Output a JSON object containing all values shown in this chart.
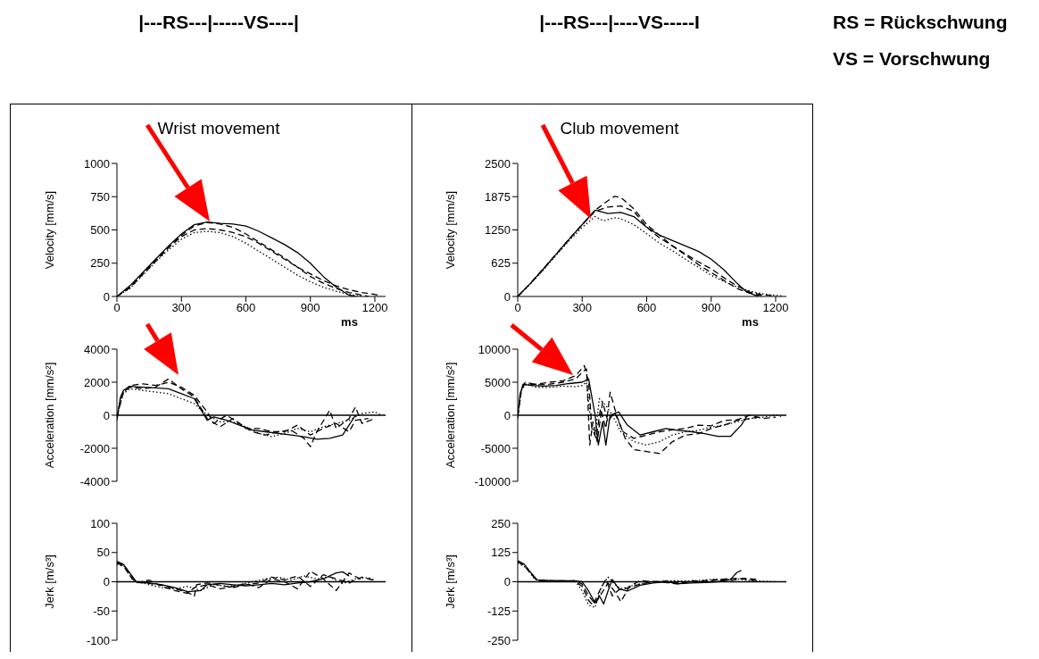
{
  "chart_data": [
    {
      "type": "line",
      "title": "Wrist movement",
      "xlabel": "ms",
      "ylabel": "Velocity [mm/s]",
      "xlim": [
        0,
        1250
      ],
      "xticks": [
        0,
        300,
        600,
        900,
        1200
      ],
      "ylim": [
        0,
        1000
      ],
      "yticks": [
        0,
        250,
        500,
        750,
        1000
      ],
      "annotations": [
        "|---RS---|-----VS----|"
      ],
      "series": [
        {
          "color": "#000000",
          "line_style": "solid",
          "x": [
            0,
            60,
            120,
            180,
            240,
            300,
            360,
            420,
            480,
            540,
            600,
            660,
            720,
            780,
            840,
            900,
            960,
            1020,
            1080,
            1110
          ],
          "values": [
            0,
            80,
            180,
            280,
            380,
            470,
            540,
            560,
            550,
            545,
            530,
            490,
            440,
            390,
            330,
            250,
            150,
            70,
            10,
            0
          ]
        },
        {
          "color": "#000000",
          "line_style": "dashed",
          "x": [
            0,
            60,
            120,
            180,
            240,
            300,
            360,
            420,
            480,
            540,
            600,
            660,
            720,
            780,
            840,
            900,
            960,
            1020,
            1080,
            1140,
            1170
          ],
          "values": [
            0,
            70,
            170,
            270,
            370,
            460,
            530,
            555,
            545,
            520,
            470,
            410,
            350,
            290,
            220,
            150,
            100,
            60,
            30,
            10,
            0
          ]
        },
        {
          "color": "#000000",
          "line_style": "dotted",
          "x": [
            0,
            60,
            120,
            180,
            240,
            300,
            360,
            420,
            480,
            540,
            600,
            660,
            720,
            780,
            840,
            900,
            960,
            1020,
            1080,
            1140
          ],
          "values": [
            0,
            60,
            160,
            260,
            350,
            430,
            480,
            490,
            480,
            450,
            400,
            340,
            280,
            220,
            160,
            110,
            70,
            40,
            15,
            0
          ]
        },
        {
          "color": "#000000",
          "line_style": "dashed",
          "x": [
            0,
            60,
            120,
            180,
            240,
            300,
            360,
            420,
            480,
            540,
            600,
            660,
            720,
            780,
            840,
            900,
            960,
            1020,
            1080,
            1140,
            1200,
            1230
          ],
          "values": [
            0,
            65,
            165,
            265,
            365,
            450,
            500,
            510,
            500,
            480,
            450,
            400,
            340,
            280,
            220,
            170,
            120,
            80,
            50,
            30,
            15,
            5
          ]
        }
      ]
    },
    {
      "type": "line",
      "title": "Club movement",
      "xlabel": "ms",
      "ylabel": "Velocity [mm/s]",
      "xlim": [
        0,
        1250
      ],
      "xticks": [
        0,
        300,
        600,
        900,
        1200
      ],
      "ylim": [
        0,
        2500
      ],
      "yticks": [
        0,
        625,
        1250,
        1875,
        2500
      ],
      "annotations": [
        "|---RS---|----VS-----I",
        "RS = Rückschwung",
        "VS = Vorschwung"
      ],
      "series": [
        {
          "color": "#000000",
          "line_style": "solid",
          "x": [
            0,
            60,
            120,
            180,
            240,
            300,
            360,
            420,
            480,
            540,
            600,
            660,
            720,
            780,
            840,
            900,
            960,
            1020,
            1060,
            1100,
            1120
          ],
          "values": [
            0,
            250,
            520,
            800,
            1080,
            1350,
            1620,
            1560,
            1580,
            1500,
            1300,
            1150,
            1050,
            950,
            850,
            700,
            500,
            250,
            100,
            30,
            0
          ]
        },
        {
          "color": "#000000",
          "line_style": "dashed",
          "x": [
            0,
            60,
            120,
            180,
            240,
            300,
            360,
            420,
            450,
            480,
            540,
            600,
            660,
            720,
            780,
            840,
            900,
            960,
            1020,
            1080,
            1140
          ],
          "values": [
            0,
            250,
            520,
            800,
            1080,
            1350,
            1620,
            1800,
            1880,
            1860,
            1650,
            1350,
            1150,
            950,
            780,
            600,
            450,
            300,
            150,
            60,
            10
          ]
        },
        {
          "color": "#000000",
          "line_style": "dotted",
          "x": [
            0,
            60,
            120,
            180,
            240,
            300,
            360,
            400,
            450,
            480,
            540,
            600,
            660,
            720,
            780,
            840,
            900,
            960,
            1020,
            1080,
            1140,
            1200,
            1230
          ],
          "values": [
            0,
            240,
            500,
            780,
            1050,
            1300,
            1500,
            1420,
            1480,
            1460,
            1350,
            1180,
            1000,
            860,
            700,
            550,
            400,
            280,
            180,
            100,
            50,
            20,
            10
          ]
        },
        {
          "color": "#000000",
          "line_style": "dashed",
          "x": [
            0,
            60,
            120,
            180,
            240,
            300,
            360,
            420,
            480,
            540,
            600,
            660,
            720,
            780,
            840,
            900,
            960,
            1020,
            1080,
            1140,
            1200
          ],
          "values": [
            0,
            250,
            520,
            800,
            1080,
            1350,
            1600,
            1680,
            1700,
            1600,
            1300,
            1100,
            950,
            800,
            650,
            520,
            350,
            200,
            80,
            30,
            10
          ]
        }
      ]
    },
    {
      "type": "line",
      "ylabel": "Acceleration [mm/s²]",
      "xlim": [
        0,
        1250
      ],
      "ylim": [
        -4000,
        4000
      ],
      "yticks": [
        -4000,
        -2000,
        0,
        2000,
        4000
      ],
      "tick_labels": "y",
      "ref_lines": [
        {
          "axis": "y",
          "value": 0
        }
      ],
      "series": [
        {
          "color": "#000000",
          "line_style": "solid",
          "x": [
            0,
            15,
            30,
            60,
            120,
            180,
            240,
            300,
            360,
            420,
            450,
            510,
            570,
            630,
            690,
            750,
            810,
            870,
            930,
            990,
            1050,
            1110
          ],
          "values": [
            -300,
            1000,
            1500,
            1750,
            1700,
            1650,
            1600,
            1300,
            1000,
            -300,
            -100,
            -300,
            -600,
            -900,
            -1000,
            -1100,
            -1200,
            -1300,
            -1450,
            -1400,
            -1200,
            0
          ]
        },
        {
          "color": "#000000",
          "line_style": "dashed",
          "x": [
            0,
            20,
            60,
            120,
            180,
            240,
            300,
            360,
            420,
            450,
            510,
            570,
            630,
            690,
            750,
            810,
            870,
            900,
            930,
            990,
            1020,
            1080,
            1110,
            1140,
            1200
          ],
          "values": [
            -200,
            1200,
            1800,
            1900,
            1800,
            2000,
            1700,
            1200,
            200,
            -500,
            0,
            -500,
            -1000,
            -1200,
            -1000,
            -900,
            -1400,
            -1900,
            -1000,
            300,
            -800,
            -200,
            500,
            -500,
            -200
          ]
        },
        {
          "color": "#000000",
          "line_style": "dotted",
          "x": [
            0,
            30,
            60,
            120,
            180,
            240,
            300,
            360,
            420,
            480,
            540,
            600,
            660,
            720,
            780,
            840,
            900,
            960,
            1020,
            1080,
            1140,
            1200,
            1230
          ],
          "values": [
            0,
            1300,
            1600,
            1500,
            1400,
            1300,
            1000,
            700,
            0,
            -400,
            -400,
            -700,
            -1100,
            -1300,
            -1100,
            -800,
            -1000,
            -700,
            -500,
            -300,
            100,
            200,
            0
          ]
        },
        {
          "color": "#000000",
          "line_style": "dashed",
          "x": [
            0,
            30,
            60,
            120,
            180,
            240,
            300,
            360,
            420,
            480,
            540,
            600,
            660,
            720,
            780,
            840,
            900,
            960,
            1020,
            1080,
            1110,
            1170
          ],
          "values": [
            -100,
            1400,
            1700,
            1600,
            1700,
            2200,
            1600,
            1100,
            -200,
            -700,
            -200,
            -800,
            -800,
            -1000,
            -1000,
            -600,
            -1200,
            -800,
            -500,
            -1000,
            -300,
            -200
          ]
        }
      ]
    },
    {
      "type": "line",
      "ylabel": "Acceleration [mm/s²]",
      "xlim": [
        0,
        1250
      ],
      "ylim": [
        -10000,
        10000
      ],
      "yticks": [
        -10000,
        -5000,
        0,
        5000,
        10000
      ],
      "tick_labels": "y",
      "ref_lines": [
        {
          "axis": "y",
          "value": 0
        }
      ],
      "series": [
        {
          "color": "#000000",
          "line_style": "solid",
          "x": [
            0,
            10,
            25,
            60,
            120,
            180,
            240,
            300,
            330,
            360,
            375,
            395,
            410,
            430,
            470,
            510,
            570,
            630,
            690,
            750,
            810,
            870,
            930,
            990,
            1040,
            1070
          ],
          "values": [
            -500,
            3000,
            4700,
            4500,
            4400,
            4500,
            4800,
            5000,
            5500,
            0,
            -4500,
            -1000,
            -4500,
            0,
            500,
            -1500,
            -3000,
            -2500,
            -2000,
            -2300,
            -2500,
            -2800,
            -3200,
            -3200,
            -1500,
            0
          ]
        },
        {
          "color": "#000000",
          "line_style": "dashed",
          "x": [
            0,
            15,
            30,
            90,
            150,
            210,
            270,
            310,
            330,
            345,
            365,
            385,
            410,
            430,
            460,
            500,
            540,
            600,
            660,
            720,
            780,
            840,
            900,
            960,
            1020,
            1080,
            1140
          ],
          "values": [
            -300,
            3500,
            4600,
            4700,
            5000,
            5200,
            6000,
            7500,
            5000,
            -2000,
            -3500,
            1000,
            -2000,
            3500,
            0,
            -3500,
            -5200,
            -5500,
            -5800,
            -4000,
            -3000,
            -2800,
            -2000,
            -1500,
            -800,
            -500,
            -200
          ]
        },
        {
          "color": "#000000",
          "line_style": "dotted",
          "x": [
            0,
            20,
            40,
            90,
            150,
            210,
            270,
            300,
            320,
            340,
            360,
            380,
            410,
            440,
            480,
            540,
            600,
            660,
            720,
            780,
            840,
            900,
            960,
            1020,
            1080,
            1140,
            1200,
            1230
          ],
          "values": [
            0,
            4000,
            4800,
            4200,
            4200,
            4400,
            4300,
            4500,
            5000,
            -1000,
            -3000,
            2500,
            1500,
            0,
            -2500,
            -4000,
            -4500,
            -4000,
            -3000,
            -2500,
            -2300,
            -1800,
            -1500,
            -1000,
            -500,
            -300,
            0,
            -200
          ]
        },
        {
          "color": "#000000",
          "line_style": "dashed",
          "x": [
            0,
            15,
            35,
            90,
            150,
            210,
            270,
            300,
            320,
            335,
            350,
            370,
            395,
            420,
            450,
            490,
            540,
            600,
            660,
            720,
            780,
            840,
            900,
            960,
            1020,
            1080,
            1140,
            1200
          ],
          "values": [
            -200,
            3800,
            5000,
            4600,
            4700,
            5000,
            5500,
            6500,
            7000,
            -4500,
            -1000,
            -4000,
            2000,
            -1000,
            500,
            -2500,
            -3500,
            -3000,
            -2500,
            -2200,
            -2000,
            -1500,
            -1600,
            -800,
            -700,
            0,
            -500,
            -300
          ]
        }
      ]
    },
    {
      "type": "line",
      "ylabel": "Jerk [m/s³]",
      "xlim": [
        0,
        1250
      ],
      "ylim": [
        -100,
        100
      ],
      "yticks": [
        -100,
        -50,
        0,
        50,
        100
      ],
      "tick_labels": "y",
      "ref_lines": [
        {
          "axis": "y",
          "value": 0
        }
      ],
      "series": [
        {
          "color": "#000000",
          "line_style": "solid",
          "x": [
            0,
            30,
            60,
            90,
            150,
            210,
            270,
            330,
            390,
            420,
            480,
            540,
            600,
            660,
            720,
            780,
            840,
            900,
            960,
            1020,
            1050,
            1080
          ],
          "values": [
            35,
            30,
            15,
            0,
            -2,
            -5,
            -10,
            -17,
            -15,
            -5,
            -3,
            -5,
            -7,
            -5,
            -3,
            -5,
            -2,
            0,
            5,
            15,
            17,
            10
          ]
        },
        {
          "color": "#000000",
          "line_style": "dashed",
          "x": [
            0,
            30,
            60,
            90,
            150,
            210,
            270,
            330,
            360,
            420,
            480,
            540,
            600,
            660,
            720,
            780,
            840,
            900,
            960,
            1020,
            1080,
            1140
          ],
          "values": [
            33,
            28,
            10,
            -2,
            3,
            -8,
            -15,
            -20,
            -10,
            -5,
            -12,
            -8,
            -3,
            -10,
            5,
            0,
            -12,
            18,
            5,
            -15,
            15,
            3
          ]
        },
        {
          "color": "#000000",
          "line_style": "dotted",
          "x": [
            0,
            40,
            70,
            100,
            150,
            210,
            270,
            330,
            390,
            450,
            510,
            570,
            630,
            690,
            750,
            810,
            870,
            930,
            990,
            1050,
            1110,
            1170,
            1200
          ],
          "values": [
            30,
            25,
            5,
            0,
            -5,
            -10,
            -12,
            -8,
            -15,
            -5,
            -8,
            -5,
            0,
            5,
            8,
            3,
            10,
            5,
            8,
            -3,
            5,
            7,
            3
          ]
        },
        {
          "color": "#000000",
          "line_style": "dashed",
          "x": [
            0,
            30,
            60,
            90,
            150,
            210,
            270,
            330,
            360,
            370,
            420,
            480,
            540,
            600,
            660,
            720,
            780,
            840,
            900,
            960,
            1020,
            1080,
            1140,
            1200
          ],
          "values": [
            32,
            27,
            12,
            -1,
            -3,
            -6,
            -12,
            -18,
            -25,
            -5,
            -2,
            -6,
            -10,
            -5,
            -2,
            8,
            3,
            10,
            -8,
            12,
            5,
            -2,
            8,
            2
          ]
        }
      ]
    },
    {
      "type": "line",
      "ylabel": "Jerk [m/s³]",
      "xlim": [
        0,
        1250
      ],
      "ylim": [
        -250,
        250
      ],
      "yticks": [
        -250,
        -125,
        0,
        125,
        250
      ],
      "tick_labels": "y",
      "ref_lines": [
        {
          "axis": "y",
          "value": 0
        }
      ],
      "series": [
        {
          "color": "#000000",
          "line_style": "solid",
          "x": [
            0,
            30,
            60,
            90,
            150,
            210,
            270,
            300,
            330,
            360,
            380,
            400,
            420,
            440,
            470,
            510,
            570,
            630,
            690,
            750,
            810,
            870,
            930,
            990,
            1020,
            1040
          ],
          "values": [
            90,
            75,
            40,
            8,
            5,
            5,
            3,
            0,
            -40,
            -90,
            -60,
            -95,
            -40,
            10,
            -30,
            -40,
            -15,
            -5,
            0,
            -8,
            -5,
            -3,
            0,
            10,
            40,
            48
          ]
        },
        {
          "color": "#000000",
          "line_style": "dashed",
          "x": [
            0,
            30,
            60,
            90,
            150,
            210,
            270,
            300,
            330,
            360,
            390,
            420,
            450,
            480,
            520,
            570,
            630,
            690,
            750,
            810,
            870,
            930,
            990,
            1050,
            1110
          ],
          "values": [
            85,
            70,
            35,
            5,
            3,
            2,
            5,
            -10,
            -60,
            -95,
            -50,
            -5,
            -40,
            -85,
            -20,
            5,
            0,
            3,
            -5,
            0,
            5,
            10,
            5,
            15,
            10
          ]
        },
        {
          "color": "#000000",
          "line_style": "dotted",
          "x": [
            0,
            40,
            80,
            150,
            210,
            270,
            300,
            330,
            360,
            390,
            420,
            450,
            480,
            540,
            600,
            660,
            720,
            780,
            840,
            900,
            960,
            1020,
            1080,
            1140,
            1200
          ],
          "values": [
            80,
            60,
            10,
            3,
            2,
            0,
            -40,
            -100,
            -110,
            -20,
            20,
            -10,
            -30,
            -15,
            -5,
            0,
            5,
            3,
            5,
            10,
            8,
            12,
            5,
            2,
            0
          ]
        },
        {
          "color": "#000000",
          "line_style": "dashed",
          "x": [
            0,
            30,
            60,
            90,
            150,
            210,
            270,
            300,
            330,
            350,
            380,
            410,
            440,
            470,
            520,
            570,
            630,
            690,
            750,
            810,
            870,
            930,
            990,
            1050,
            1110
          ],
          "values": [
            88,
            72,
            38,
            6,
            4,
            3,
            0,
            -20,
            -80,
            -100,
            -40,
            10,
            -60,
            -35,
            -25,
            -10,
            0,
            -3,
            -10,
            5,
            0,
            8,
            15,
            12,
            5
          ]
        }
      ]
    }
  ]
}
